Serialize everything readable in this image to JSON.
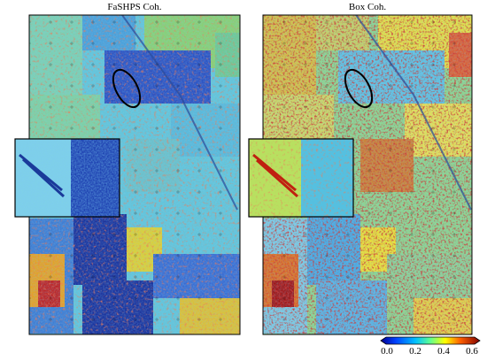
{
  "panels": [
    {
      "title": "FaSHPS Coh."
    },
    {
      "title": "Box Coh."
    }
  ],
  "colorbar": {
    "ticks": [
      "0.0",
      "0.2",
      "0.4",
      "0.6"
    ]
  }
}
